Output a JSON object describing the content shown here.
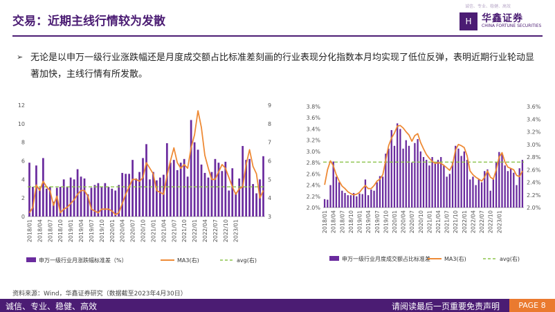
{
  "header": {
    "title": "交易：近期主线行情较为发散"
  },
  "logo": {
    "name_cn": "华鑫证券",
    "name_en": "CHINA FORTUNE SECURITIES",
    "tagline": "诚信、专业、稳健、高效",
    "mark": "H"
  },
  "bullet": {
    "marker": "➢",
    "text": "无论是以申万一级行业涨跌幅还是月度成交额占比标准差刻画的行业表现分化指数本月均实现了低位反弹，表明近期行业轮动显著加快，主线行情有所发散。"
  },
  "source": "资料来源：Wind，华鑫证券研究（数据截至2023年4月30日）",
  "footer": {
    "left": "诚信、专业、稳健、高效",
    "right": "请阅读最后一页重要免责声明",
    "page": "PAGE 8"
  },
  "colors": {
    "brand": "#4b1c73",
    "bar": "#6a2b9e",
    "line": "#ee8a35",
    "avg": "#8bc34a",
    "accent": "#ea7a2f"
  },
  "chart_data": [
    {
      "type": "bar",
      "x_tick_labels": [
        "2018/01",
        "2018/04",
        "2018/07",
        "2018/10",
        "2019/01",
        "2019/04",
        "2019/07",
        "2019/10",
        "2020/01",
        "2020/04",
        "2020/07",
        "2020/10",
        "2021/01",
        "2021/04",
        "2021/07",
        "2021/10",
        "2022/01",
        "2022/04",
        "2022/07",
        "2022/10",
        "2023/01"
      ],
      "ylim_left": [
        0,
        12
      ],
      "yticks_left": [
        "0",
        "2",
        "4",
        "6",
        "8",
        "10",
        "12"
      ],
      "ylim_right": [
        3,
        9
      ],
      "yticks_right": [
        "3",
        "4",
        "5",
        "6",
        "7",
        "8",
        "9"
      ],
      "bars": [
        5.8,
        3.2,
        5.5,
        3.1,
        6.3,
        3.0,
        3.2,
        1.6,
        3.1,
        3.2,
        4.0,
        3.2,
        4.2,
        4.0,
        5.1,
        4.3,
        4.1,
        2.4,
        3.1,
        3.4,
        3.6,
        3.2,
        3.6,
        3.2,
        3.0,
        2.8,
        3.4,
        4.7,
        4.6,
        4.6,
        6.1,
        4.1,
        4.8,
        6.3,
        7.8,
        4.0,
        4.8,
        3.9,
        4.2,
        4.5,
        7.9,
        5.8,
        6.1,
        5.0,
        5.8,
        6.2,
        4.3,
        10.4,
        8.0,
        7.2,
        5.6,
        4.7,
        4.2,
        4.8,
        6.2,
        5.8,
        4.9,
        5.9,
        2.8,
        5.2,
        2.6,
        4.1,
        7.6,
        6.1,
        6.2,
        3.5,
        2.5,
        4.0,
        6.5
      ],
      "ma3": [
        3.2,
        3.5,
        4.7,
        4.4,
        4.9,
        4.6,
        4.4,
        3.6,
        4.1,
        3.2,
        3.4,
        3.5,
        3.7,
        3.9,
        4.2,
        4.4,
        4.4,
        4.1,
        3.4,
        3.3,
        3.2,
        3.4,
        3.4,
        3.4,
        3.3,
        3.1,
        3.2,
        3.7,
        4.2,
        4.6,
        5.0,
        5.0,
        4.9,
        5.1,
        5.9,
        5.6,
        5.3,
        4.4,
        4.3,
        4.2,
        5.2,
        6.0,
        6.7,
        5.9,
        5.6,
        5.8,
        5.6,
        6.7,
        7.4,
        8.7,
        7.8,
        6.3,
        5.6,
        5.0,
        5.0,
        5.4,
        5.8,
        5.6,
        5.1,
        4.6,
        4.2,
        4.5,
        4.6,
        5.8,
        6.6,
        5.7,
        5.3,
        4.0,
        4.4
      ],
      "avg": 4.6,
      "legend": [
        "申万一级行业月涨跌幅标准差（%）",
        "MA3(右)",
        "avg(右)"
      ]
    },
    {
      "type": "bar",
      "x_tick_labels": [
        "2018/01",
        "2018/04",
        "2018/07",
        "2018/10",
        "2019/01",
        "2019/04",
        "2019/07",
        "2019/10",
        "2020/01",
        "2020/04",
        "2020/07",
        "2020/10",
        "2021/01",
        "2021/04",
        "2021/07",
        "2021/10",
        "2022/01",
        "2022/04",
        "2022/07",
        "2022/10",
        "2023/01"
      ],
      "ylim_left": [
        2.0,
        3.8
      ],
      "yticks_left": [
        "2.0%",
        "2.2%",
        "2.4%",
        "2.6%",
        "2.8%",
        "3.0%",
        "3.2%",
        "3.4%",
        "3.6%",
        "3.8%"
      ],
      "ylim_right": [
        2.0,
        3.6
      ],
      "yticks_right": [
        "2.0%",
        "2.2%",
        "2.4%",
        "2.6%",
        "2.8%",
        "3.0%",
        "3.2%",
        "3.4%",
        "3.6%"
      ],
      "bars": [
        2.15,
        2.14,
        2.4,
        2.82,
        2.55,
        2.45,
        2.3,
        2.26,
        2.22,
        2.22,
        2.26,
        2.2,
        2.25,
        2.24,
        2.5,
        2.22,
        2.32,
        2.3,
        2.45,
        2.56,
        2.55,
        2.96,
        3.05,
        3.38,
        3.1,
        3.5,
        3.4,
        3.05,
        3.2,
        3.1,
        2.8,
        3.15,
        3.22,
        3.0,
        2.9,
        2.85,
        2.75,
        2.9,
        2.8,
        2.85,
        2.9,
        2.75,
        2.55,
        2.6,
        2.8,
        3.1,
        3.05,
        2.92,
        3.0,
        2.85,
        2.5,
        2.55,
        2.4,
        2.5,
        2.45,
        2.65,
        2.68,
        2.3,
        2.5,
        2.8,
        2.99,
        2.95,
        2.75,
        2.65,
        2.7,
        2.62,
        2.4,
        2.7,
        2.85
      ],
      "ma3": [
        2.36,
        2.6,
        2.74,
        2.66,
        2.52,
        2.42,
        2.34,
        2.3,
        2.25,
        2.22,
        2.2,
        2.21,
        2.24,
        2.3,
        2.35,
        2.3,
        2.3,
        2.35,
        2.42,
        2.45,
        2.52,
        2.75,
        2.98,
        3.1,
        3.18,
        3.29,
        3.3,
        3.26,
        3.2,
        3.15,
        3.05,
        3.14,
        3.17,
        3.03,
        2.93,
        2.84,
        2.78,
        2.73,
        2.7,
        2.71,
        2.7,
        2.67,
        2.63,
        2.59,
        2.68,
        2.91,
        3.0,
        2.98,
        2.95,
        2.82,
        2.58,
        2.52,
        2.48,
        2.45,
        2.42,
        2.48,
        2.58,
        2.48,
        2.45,
        2.6,
        2.8,
        2.87,
        2.72,
        2.64,
        2.62,
        2.6,
        2.51,
        2.49,
        2.58
      ],
      "avg": 2.72,
      "legend": [
        "申万一级行业月度成交额占比标准差",
        "MA3(右)",
        "avg(右)"
      ]
    }
  ]
}
